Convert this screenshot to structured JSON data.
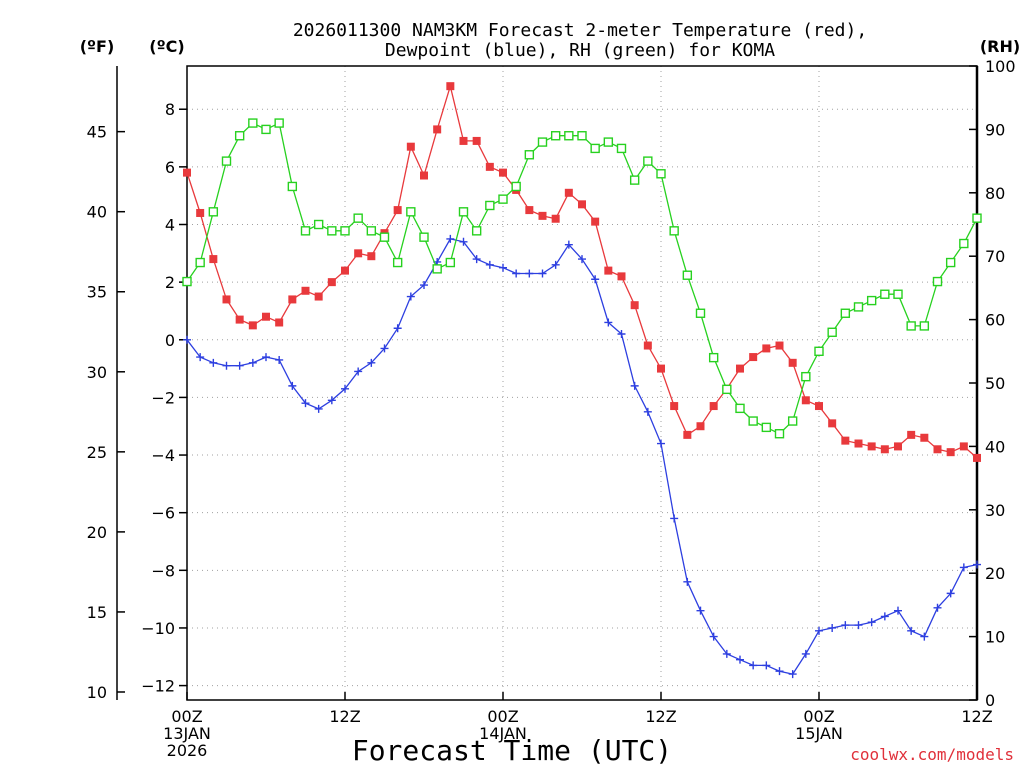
{
  "chart_data": {
    "type": "line",
    "title_line1": "2026011300 NAM3KM Forecast 2-meter Temperature (red),",
    "title_line2": "Dewpoint (blue), RH (green) for KOMA",
    "xlabel": "Forecast Time (UTC)",
    "credit": "coolwx.com/models",
    "units": {
      "fahrenheit": "(ºF)",
      "celsius": "(ºC)",
      "rh": "(RH)"
    },
    "x_range_hours": [
      0,
      60
    ],
    "x_ticks": [
      {
        "hour": 0,
        "lines": [
          "00Z",
          "13JAN",
          "2026"
        ]
      },
      {
        "hour": 12,
        "lines": [
          "12Z"
        ]
      },
      {
        "hour": 24,
        "lines": [
          "00Z",
          "14JAN"
        ]
      },
      {
        "hour": 36,
        "lines": [
          "12Z"
        ]
      },
      {
        "hour": 48,
        "lines": [
          "00Z",
          "15JAN"
        ]
      },
      {
        "hour": 60,
        "lines": [
          "12Z"
        ]
      }
    ],
    "celsius_axis": {
      "ylim": [
        -12.5,
        9.5
      ],
      "ticks": [
        "8",
        "6",
        "4",
        "2",
        "0",
        "−2",
        "−4",
        "−6",
        "−8",
        "−10",
        "−12"
      ],
      "tick_values": [
        8,
        6,
        4,
        2,
        0,
        -2,
        -4,
        -6,
        -8,
        -10,
        -12
      ]
    },
    "fahrenheit_axis": {
      "ticks": [
        "45",
        "40",
        "35",
        "30",
        "25",
        "20",
        "15",
        "10"
      ],
      "tick_values": [
        45,
        40,
        35,
        30,
        25,
        20,
        15,
        10
      ]
    },
    "rh_axis": {
      "ylim": [
        0,
        100
      ],
      "ticks": [
        "100",
        "90",
        "80",
        "70",
        "60",
        "50",
        "40",
        "30",
        "20",
        "10",
        "0"
      ],
      "tick_values": [
        100,
        90,
        80,
        70,
        60,
        50,
        40,
        30,
        20,
        10,
        0
      ]
    },
    "series": [
      {
        "name": "2-meter Temperature",
        "unit": "C",
        "color": "#e8393c",
        "marker": "filled-square",
        "hours": [
          0,
          1,
          2,
          3,
          4,
          5,
          6,
          7,
          8,
          9,
          10,
          11,
          12,
          13,
          14,
          15,
          16,
          17,
          18,
          19,
          20,
          21,
          22,
          23,
          24,
          25,
          26,
          27,
          28,
          29,
          30,
          31,
          32,
          33,
          34,
          35,
          36,
          37,
          38,
          39,
          40,
          41,
          42,
          43,
          44,
          45,
          46,
          47,
          48,
          49,
          50,
          51,
          52,
          53,
          54,
          55,
          56,
          57,
          58,
          59,
          60
        ],
        "values": [
          5.8,
          4.4,
          2.8,
          1.4,
          0.7,
          0.5,
          0.8,
          0.6,
          1.4,
          1.7,
          1.5,
          2.0,
          2.4,
          3.0,
          2.9,
          3.7,
          4.5,
          6.7,
          5.7,
          7.3,
          8.8,
          6.9,
          6.9,
          6.0,
          5.8,
          5.2,
          4.5,
          4.3,
          4.2,
          5.1,
          4.7,
          4.1,
          2.4,
          2.2,
          1.2,
          -0.2,
          -1.0,
          -2.3,
          -3.3,
          -3.0,
          -2.3,
          -1.7,
          -1.0,
          -0.6,
          -0.3,
          -0.2,
          -0.8,
          -2.1,
          -2.3,
          -2.9,
          -3.5,
          -3.6,
          -3.7,
          -3.8,
          -3.7,
          -3.3,
          -3.4,
          -3.8,
          -3.9,
          -3.7,
          -4.1
        ]
      },
      {
        "name": "Dewpoint",
        "unit": "C",
        "color": "#2d3fe0",
        "marker": "plus",
        "hours": [
          0,
          1,
          2,
          3,
          4,
          5,
          6,
          7,
          8,
          9,
          10,
          11,
          12,
          13,
          14,
          15,
          16,
          17,
          18,
          19,
          20,
          21,
          22,
          23,
          24,
          25,
          26,
          27,
          28,
          29,
          30,
          31,
          32,
          33,
          34,
          35,
          36,
          37,
          38,
          39,
          40,
          41,
          42,
          43,
          44,
          45,
          46,
          47,
          48,
          49,
          50,
          51,
          52,
          53,
          54,
          55,
          56,
          57,
          58,
          59,
          60
        ],
        "values": [
          0.0,
          -0.6,
          -0.8,
          -0.9,
          -0.9,
          -0.8,
          -0.6,
          -0.7,
          -1.6,
          -2.2,
          -2.4,
          -2.1,
          -1.7,
          -1.1,
          -0.8,
          -0.3,
          0.4,
          1.5,
          1.9,
          2.7,
          3.5,
          3.4,
          2.8,
          2.6,
          2.5,
          2.3,
          2.3,
          2.3,
          2.6,
          3.3,
          2.8,
          2.1,
          0.6,
          0.2,
          -1.6,
          -2.5,
          -3.6,
          -6.2,
          -8.4,
          -9.4,
          -10.3,
          -10.9,
          -11.1,
          -11.3,
          -11.3,
          -11.5,
          -11.6,
          -10.9,
          -10.1,
          -10.0,
          -9.9,
          -9.9,
          -9.8,
          -9.6,
          -9.4,
          -10.1,
          -10.3,
          -9.3,
          -8.8,
          -7.9,
          -7.8
        ]
      },
      {
        "name": "RH",
        "unit": "%",
        "color": "#27d11f",
        "marker": "open-square",
        "hours": [
          0,
          1,
          2,
          3,
          4,
          5,
          6,
          7,
          8,
          9,
          10,
          11,
          12,
          13,
          14,
          15,
          16,
          17,
          18,
          19,
          20,
          21,
          22,
          23,
          24,
          25,
          26,
          27,
          28,
          29,
          30,
          31,
          32,
          33,
          34,
          35,
          36,
          37,
          38,
          39,
          40,
          41,
          42,
          43,
          44,
          45,
          46,
          47,
          48,
          49,
          50,
          51,
          52,
          53,
          54,
          55,
          56,
          57,
          58,
          59,
          60
        ],
        "values": [
          66,
          69,
          77,
          85,
          89,
          91,
          90,
          91,
          81,
          74,
          75,
          74,
          74,
          76,
          74,
          73,
          69,
          77,
          73,
          68,
          69,
          77,
          74,
          78,
          79,
          81,
          86,
          88,
          89,
          89,
          89,
          87,
          88,
          87,
          82,
          85,
          83,
          74,
          67,
          61,
          54,
          49,
          46,
          44,
          43,
          42,
          44,
          51,
          55,
          58,
          61,
          62,
          63,
          64,
          64,
          59,
          59,
          66,
          69,
          72,
          76
        ]
      }
    ]
  }
}
